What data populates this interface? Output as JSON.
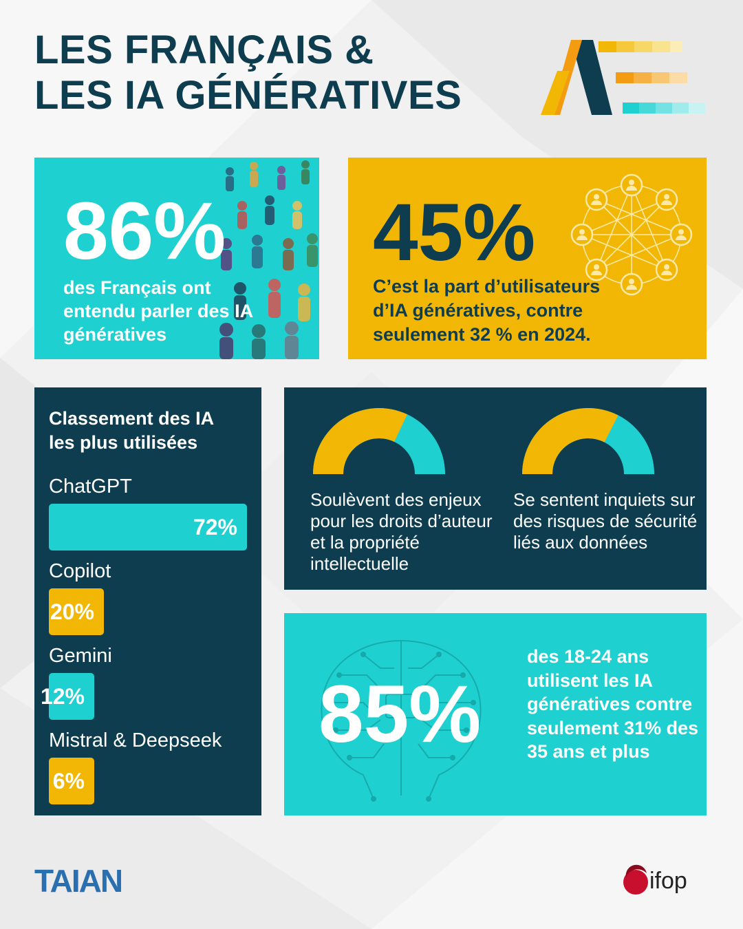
{
  "header": {
    "title_line1": "LES FRANÇAIS &",
    "title_line2": "LES IA GÉNÉRATIVES"
  },
  "stat_awareness": {
    "value": "86%",
    "text": "des Français ont entendu parler des IA génératives"
  },
  "stat_users": {
    "value": "45%",
    "text": "C’est la part d’utilisateurs d’IA génératives, contre seulement 32 % en 2024."
  },
  "ranking": {
    "title": "Classement des IA les plus utilisées"
  },
  "gauges": [
    {
      "value_label": "64%",
      "text": "Soulèvent des enjeux pour les droits d’auteur et la propriété intellectuelle"
    },
    {
      "value_label": "65%",
      "text": "Se sentent inquiets sur des risques de sécurité liés aux données"
    }
  ],
  "stat_youth": {
    "value": "85%",
    "text": "des 18-24 ans utilisent les IA génératives contre seulement 31% des 35 ans et plus"
  },
  "chart_data": [
    {
      "type": "bar",
      "title": "Classement des IA les plus utilisées",
      "categories": [
        "ChatGPT",
        "Copilot",
        "Gemini",
        "Mistral & Deepseek"
      ],
      "values": [
        72,
        20,
        12,
        6
      ],
      "value_labels": [
        "72%",
        "20%",
        "12%",
        "6%"
      ],
      "bar_colors": [
        "#1fd0d0",
        "#f2b705",
        "#1fd0d0",
        "#f2b705"
      ],
      "xlim": [
        0,
        72
      ]
    },
    {
      "type": "pie",
      "categories": [
        "64%"
      ],
      "values": [
        64
      ],
      "gauge_max": 100
    },
    {
      "type": "pie",
      "categories": [
        "65%"
      ],
      "values": [
        65
      ],
      "gauge_max": 100
    }
  ],
  "colors": {
    "navy": "#0d3d4f",
    "teal": "#1fd0d0",
    "yellow": "#f2b705",
    "orange": "#f39c12",
    "white": "#ffffff"
  },
  "footer": {
    "logo_left": "TAIAN",
    "logo_right": "ifop"
  }
}
